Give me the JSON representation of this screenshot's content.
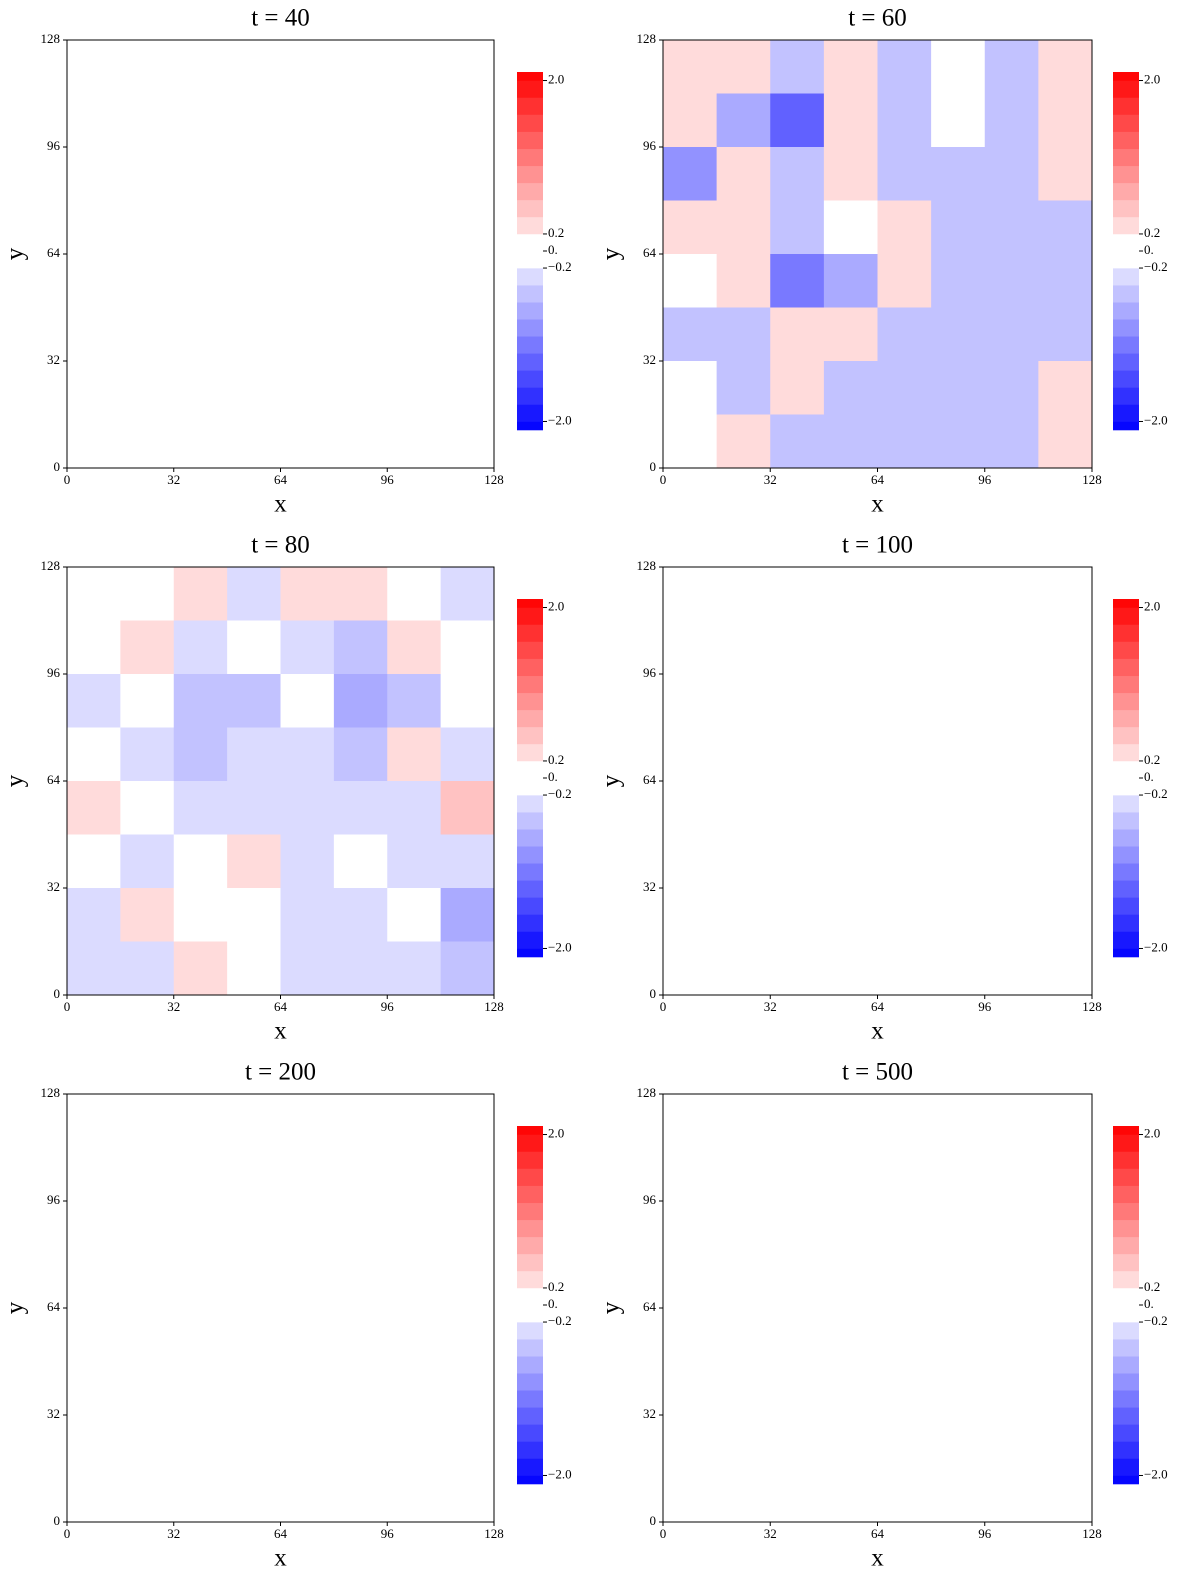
{
  "chart_data": [
    {
      "type": "heatmap",
      "title": "t = 40",
      "xlabel": "x",
      "ylabel": "y",
      "xlim": [
        0,
        128
      ],
      "ylim": [
        0,
        128
      ],
      "xticks": [
        0,
        32,
        64,
        96,
        128
      ],
      "yticks": [
        0,
        32,
        64,
        96,
        128
      ],
      "colorbar": {
        "lim": [
          -2.1,
          2.1
        ],
        "levels": [
          -2,
          -1.8,
          -1.6,
          -1.4,
          -1.2,
          -1,
          -0.8,
          -0.6,
          -0.4,
          -0.2,
          0.2,
          0.4,
          0.6,
          0.8,
          1,
          1.2,
          1.4,
          1.6,
          1.8,
          2
        ],
        "ticks": [
          {
            "value": 2,
            "label": "2.0"
          },
          {
            "value": 0.2,
            "label": "0.2"
          },
          {
            "value": 0,
            "label": "0."
          },
          {
            "value": -0.2,
            "label": "−0.2"
          },
          {
            "value": -2,
            "label": "−2.0"
          }
        ]
      }
    },
    {
      "type": "heatmap",
      "title": "t = 60",
      "xlabel": "x",
      "ylabel": "y",
      "xlim": [
        0,
        128
      ],
      "ylim": [
        0,
        128
      ],
      "xticks": [
        0,
        32,
        64,
        96,
        128
      ],
      "yticks": [
        0,
        32,
        64,
        96,
        128
      ],
      "colorbar": {
        "lim": [
          -2.1,
          2.1
        ],
        "levels": [
          -2,
          -1.8,
          -1.6,
          -1.4,
          -1.2,
          -1,
          -0.8,
          -0.6,
          -0.4,
          -0.2,
          0.2,
          0.4,
          0.6,
          0.8,
          1,
          1.2,
          1.4,
          1.6,
          1.8,
          2
        ],
        "ticks": [
          {
            "value": 2,
            "label": "2.0"
          },
          {
            "value": 0.2,
            "label": "0.2"
          },
          {
            "value": 0,
            "label": "0."
          },
          {
            "value": -0.2,
            "label": "−0.2"
          },
          {
            "value": -2,
            "label": "−2.0"
          }
        ]
      },
      "z": [
        [
          0.4,
          0.4,
          -0.4,
          0.4,
          -0.4,
          0,
          -0.4,
          0.4
        ],
        [
          0.4,
          -0.6,
          -1.2,
          0.4,
          -0.4,
          0,
          -0.4,
          0.4
        ],
        [
          -0.8,
          0.4,
          -0.4,
          0.4,
          -0.4,
          -0.4,
          -0.4,
          0.4
        ],
        [
          0.4,
          0.4,
          -0.4,
          0,
          0.4,
          -0.4,
          -0.4,
          -0.4
        ],
        [
          0,
          0.4,
          -1,
          -0.6,
          0.4,
          -0.4,
          -0.4,
          -0.4
        ],
        [
          -0.4,
          -0.4,
          0.4,
          0.4,
          -0.4,
          -0.4,
          -0.4,
          -0.4
        ],
        [
          0,
          -0.4,
          0.4,
          -0.4,
          -0.4,
          -0.4,
          -0.4,
          0.4
        ],
        [
          0,
          0.4,
          -0.4,
          -0.4,
          -0.4,
          -0.4,
          -0.4,
          0.4
        ]
      ]
    },
    {
      "type": "heatmap",
      "title": "t = 80",
      "xlabel": "x",
      "ylabel": "y",
      "xlim": [
        0,
        128
      ],
      "ylim": [
        0,
        128
      ],
      "xticks": [
        0,
        32,
        64,
        96,
        128
      ],
      "yticks": [
        0,
        32,
        64,
        96,
        128
      ],
      "colorbar": {
        "lim": [
          -2.1,
          2.1
        ],
        "levels": [
          -2,
          -1.8,
          -1.6,
          -1.4,
          -1.2,
          -1,
          -0.8,
          -0.6,
          -0.4,
          -0.2,
          0.2,
          0.4,
          0.6,
          0.8,
          1,
          1.2,
          1.4,
          1.6,
          1.8,
          2
        ],
        "ticks": [
          {
            "value": 2,
            "label": "2.0"
          },
          {
            "value": 0.2,
            "label": "0.2"
          },
          {
            "value": 0,
            "label": "0."
          },
          {
            "value": -0.2,
            "label": "−0.2"
          },
          {
            "value": -2,
            "label": "−2.0"
          }
        ]
      },
      "z": [
        [
          0,
          0,
          0.3,
          -0.3,
          0.3,
          0.3,
          0,
          -0.3
        ],
        [
          0,
          0.3,
          -0.3,
          0,
          -0.3,
          -0.4,
          0.3,
          0
        ],
        [
          -0.3,
          0,
          -0.4,
          -0.4,
          0,
          -0.6,
          -0.4,
          0
        ],
        [
          0,
          -0.3,
          -0.4,
          -0.3,
          -0.3,
          -0.4,
          0.3,
          -0.3
        ],
        [
          0.3,
          0,
          -0.3,
          -0.3,
          -0.3,
          -0.3,
          -0.3,
          0.6
        ],
        [
          0,
          -0.3,
          0,
          0.3,
          -0.3,
          0,
          -0.3,
          -0.3
        ],
        [
          -0.3,
          0.3,
          0,
          0,
          -0.3,
          -0.3,
          0,
          -0.6
        ],
        [
          -0.3,
          -0.3,
          0.3,
          0,
          -0.3,
          -0.3,
          -0.3,
          -0.4
        ]
      ]
    },
    {
      "type": "heatmap",
      "title": "t = 100",
      "xlabel": "x",
      "ylabel": "y",
      "xlim": [
        0,
        128
      ],
      "ylim": [
        0,
        128
      ],
      "xticks": [
        0,
        32,
        64,
        96,
        128
      ],
      "yticks": [
        0,
        32,
        64,
        96,
        128
      ],
      "colorbar": {
        "lim": [
          -2.1,
          2.1
        ],
        "levels": [
          -2,
          -1.8,
          -1.6,
          -1.4,
          -1.2,
          -1,
          -0.8,
          -0.6,
          -0.4,
          -0.2,
          0.2,
          0.4,
          0.6,
          0.8,
          1,
          1.2,
          1.4,
          1.6,
          1.8,
          2
        ],
        "ticks": [
          {
            "value": 2,
            "label": "2.0"
          },
          {
            "value": 0.2,
            "label": "0.2"
          },
          {
            "value": 0,
            "label": "0."
          },
          {
            "value": -0.2,
            "label": "−0.2"
          },
          {
            "value": -2,
            "label": "−2.0"
          }
        ]
      }
    },
    {
      "type": "heatmap",
      "title": "t = 200",
      "xlabel": "x",
      "ylabel": "y",
      "xlim": [
        0,
        128
      ],
      "ylim": [
        0,
        128
      ],
      "xticks": [
        0,
        32,
        64,
        96,
        128
      ],
      "yticks": [
        0,
        32,
        64,
        96,
        128
      ],
      "colorbar": {
        "lim": [
          -2.1,
          2.1
        ],
        "levels": [
          -2,
          -1.8,
          -1.6,
          -1.4,
          -1.2,
          -1,
          -0.8,
          -0.6,
          -0.4,
          -0.2,
          0.2,
          0.4,
          0.6,
          0.8,
          1,
          1.2,
          1.4,
          1.6,
          1.8,
          2
        ],
        "ticks": [
          {
            "value": 2,
            "label": "2.0"
          },
          {
            "value": 0.2,
            "label": "0.2"
          },
          {
            "value": 0,
            "label": "0."
          },
          {
            "value": -0.2,
            "label": "−0.2"
          },
          {
            "value": -2,
            "label": "−2.0"
          }
        ]
      }
    },
    {
      "type": "heatmap",
      "title": "t = 500",
      "xlabel": "x",
      "ylabel": "y",
      "xlim": [
        0,
        128
      ],
      "ylim": [
        0,
        128
      ],
      "xticks": [
        0,
        32,
        64,
        96,
        128
      ],
      "yticks": [
        0,
        32,
        64,
        96,
        128
      ],
      "colorbar": {
        "lim": [
          -2.1,
          2.1
        ],
        "levels": [
          -2,
          -1.8,
          -1.6,
          -1.4,
          -1.2,
          -1,
          -0.8,
          -0.6,
          -0.4,
          -0.2,
          0.2,
          0.4,
          0.6,
          0.8,
          1,
          1.2,
          1.4,
          1.6,
          1.8,
          2
        ],
        "ticks": [
          {
            "value": 2,
            "label": "2.0"
          },
          {
            "value": 0.2,
            "label": "0.2"
          },
          {
            "value": 0,
            "label": "0."
          },
          {
            "value": -0.2,
            "label": "−0.2"
          },
          {
            "value": -2,
            "label": "−2.0"
          }
        ]
      }
    }
  ]
}
